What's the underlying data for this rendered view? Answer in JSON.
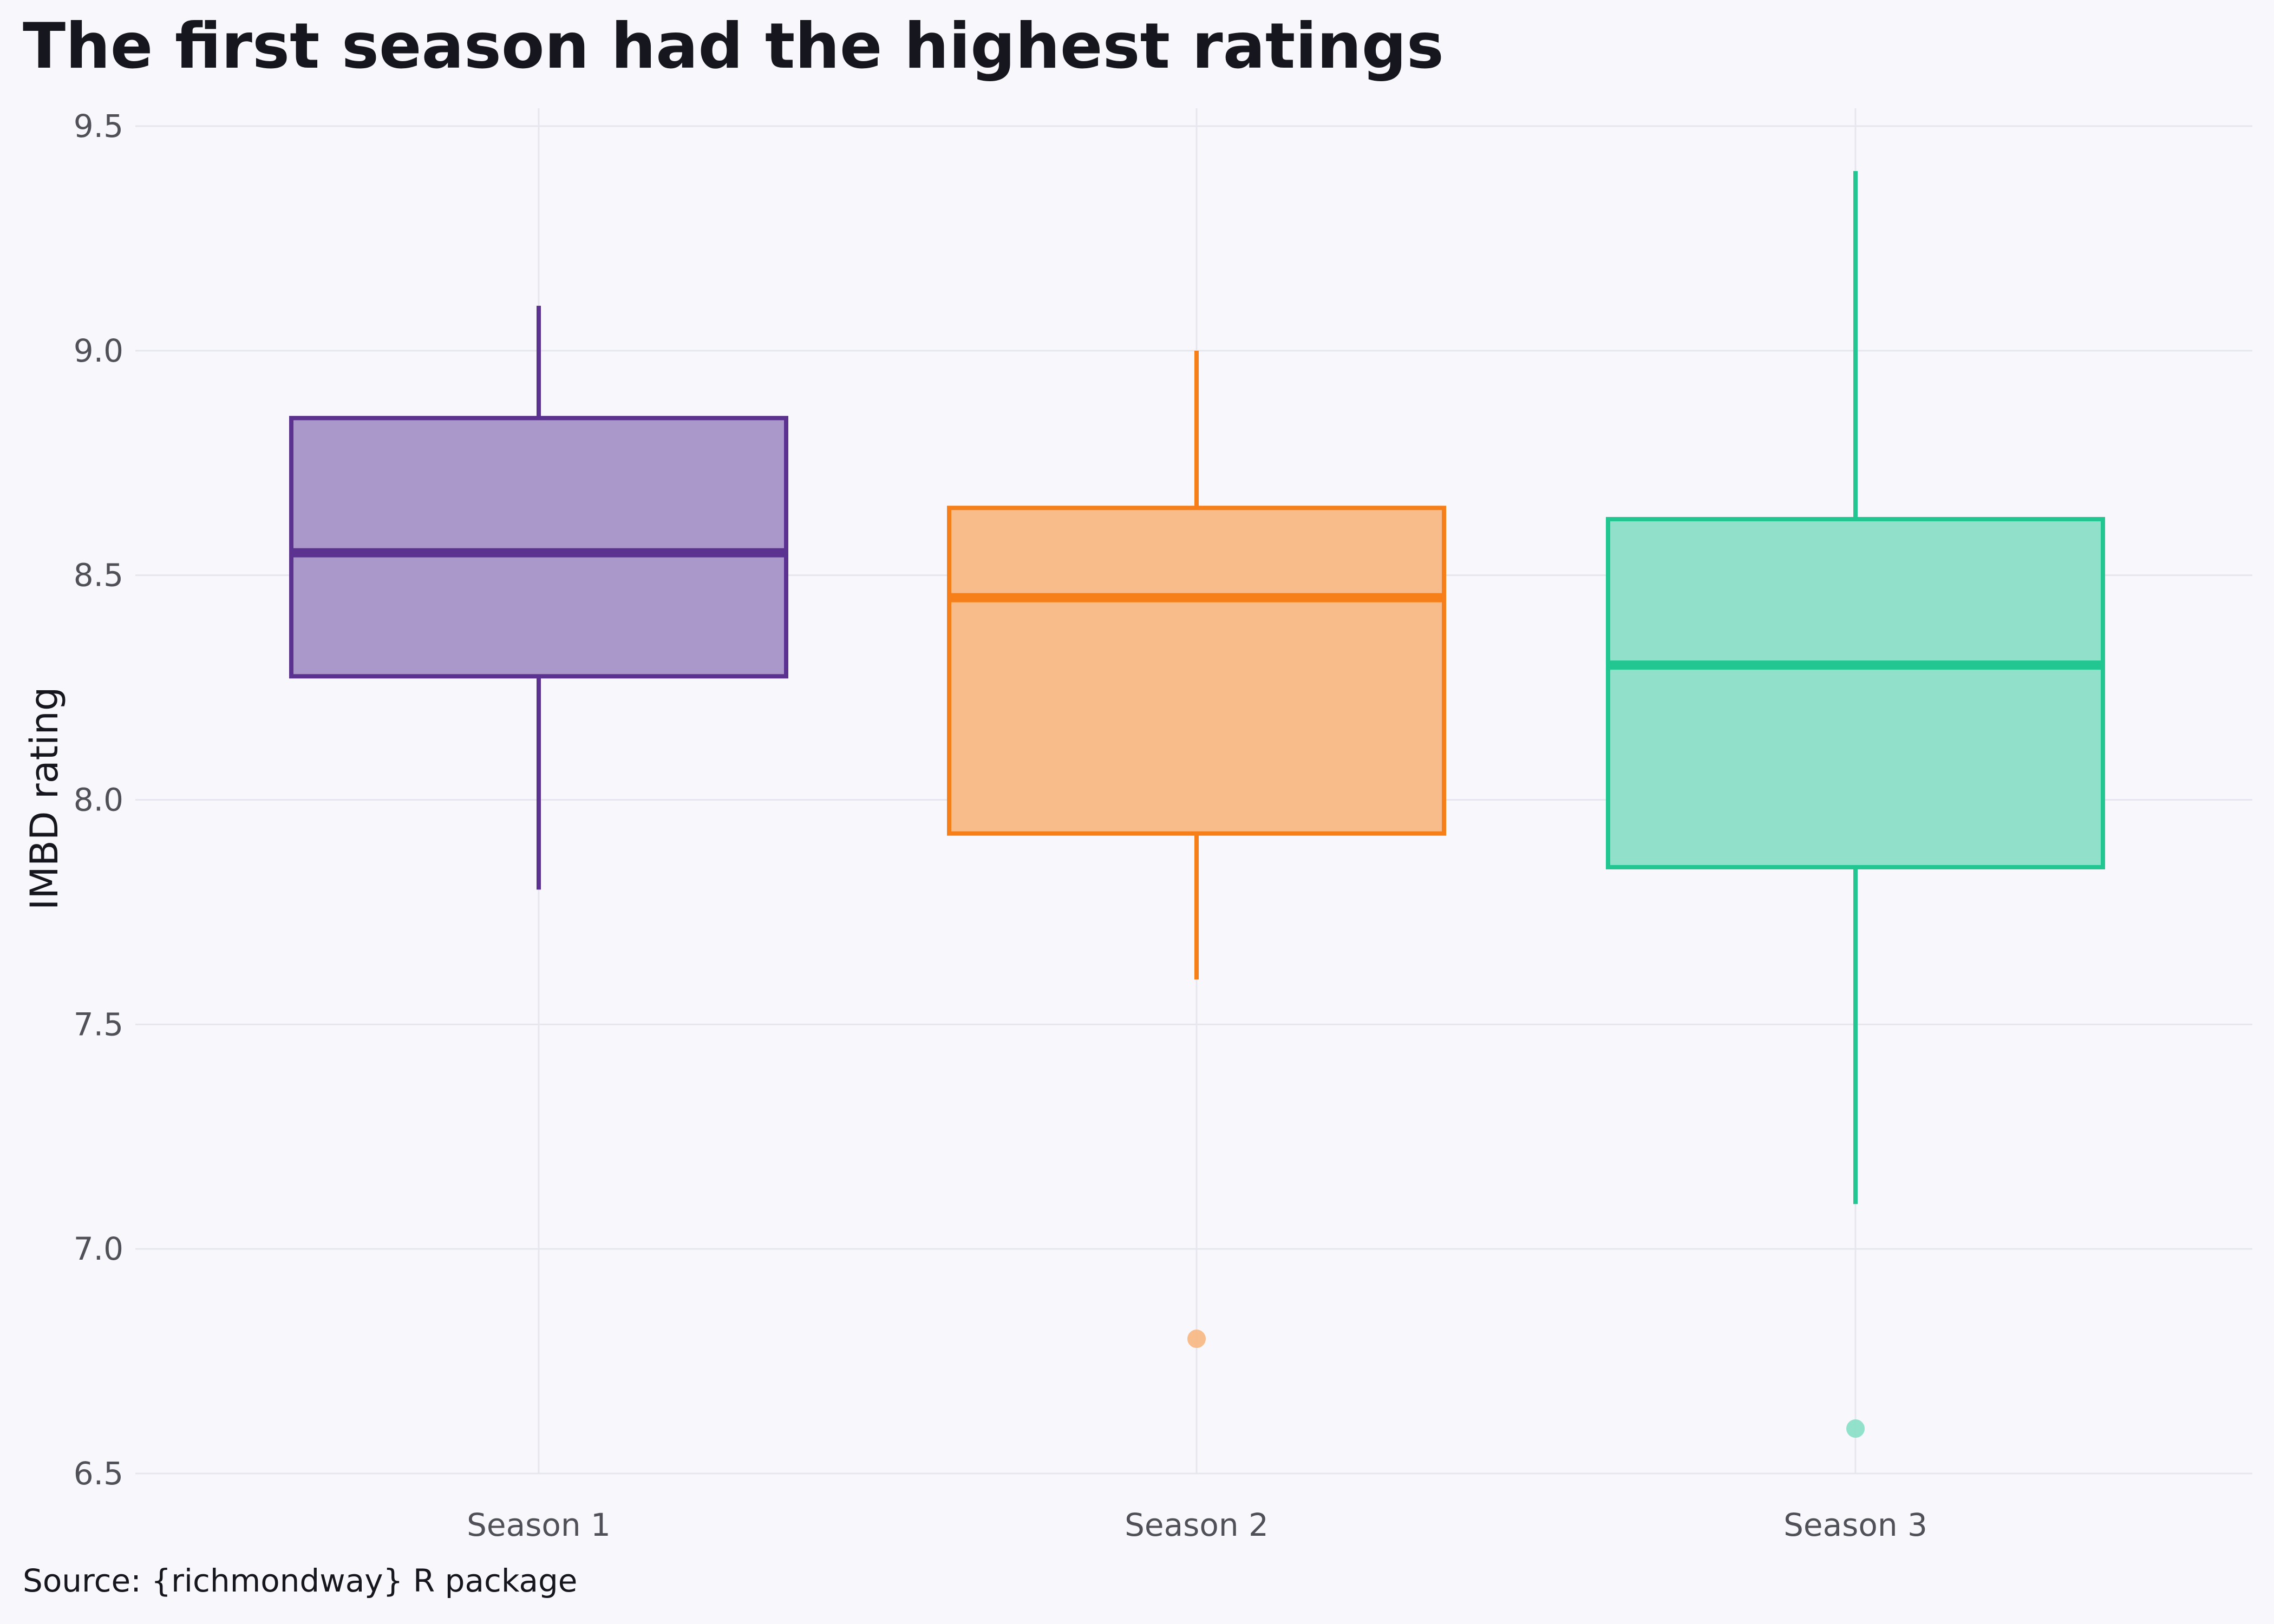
{
  "chart_data": {
    "type": "box",
    "title": "The first season had the highest ratings",
    "xlabel": "",
    "ylabel": "IMBD rating",
    "source": "Source: {richmondway} R package",
    "ylim": [
      6.5,
      9.5
    ],
    "yticks": [
      "6.5",
      "7.0",
      "7.5",
      "8.0",
      "8.5",
      "9.0",
      "9.5"
    ],
    "grid": true,
    "legend": "none",
    "categories": [
      "Season 1",
      "Season 2",
      "Season 3"
    ],
    "series": [
      {
        "category": "Season 1",
        "color": "#5c3290",
        "fill": "#a795c9",
        "whisker_low": 7.8,
        "q1": 8.275,
        "median": 8.55,
        "q3": 8.85,
        "whisker_high": 9.1,
        "outliers": []
      },
      {
        "category": "Season 2",
        "color": "#f77f1a",
        "fill": "#f8ba87",
        "whisker_low": 7.6,
        "q1": 7.925,
        "median": 8.45,
        "q3": 8.65,
        "whisker_high": 9.0,
        "outliers": [
          6.8
        ]
      },
      {
        "category": "Season 3",
        "color": "#22c690",
        "fill": "#8de0c8",
        "whisker_low": 7.1,
        "q1": 7.85,
        "median": 8.3,
        "q3": 8.625,
        "whisker_high": 9.4,
        "outliers": [
          6.6
        ]
      }
    ]
  }
}
